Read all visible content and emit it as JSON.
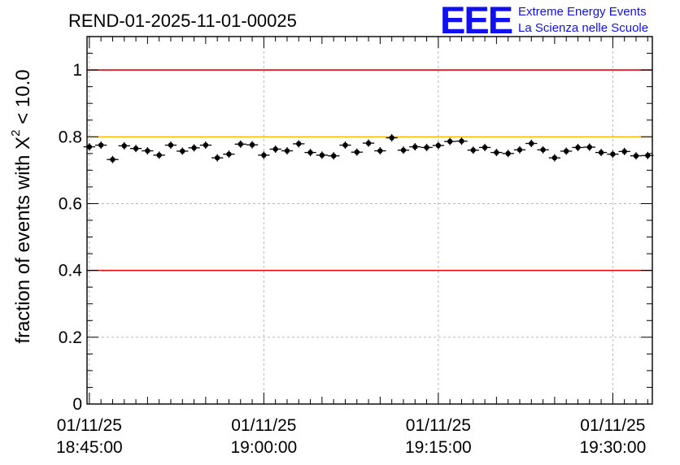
{
  "chart_data": {
    "type": "scatter",
    "title": "REND-01-2025-11-01-00025",
    "xlabel": "",
    "ylabel_prefix": "fraction of events with ",
    "ylabel_symbol": "X",
    "ylabel_exponent": "2",
    "ylabel_suffix": " < 10.0",
    "ylim": [
      0,
      1.1
    ],
    "y_ticks": [
      0,
      0.2,
      0.4,
      0.6,
      0.8,
      1
    ],
    "y_tick_labels": [
      "0",
      "0.2",
      "0.4",
      "0.6",
      "0.8",
      "1"
    ],
    "x_unit": "minutes since 18:45:00",
    "xlim": [
      -0.2,
      48.4
    ],
    "x_ticks": [
      0,
      15,
      30,
      45
    ],
    "x_tick_labels": [
      {
        "date": "01/11/25",
        "time": "18:45:00"
      },
      {
        "date": "01/11/25",
        "time": "19:00:00"
      },
      {
        "date": "01/11/25",
        "time": "19:15:00"
      },
      {
        "date": "01/11/25",
        "time": "19:30:00"
      }
    ],
    "grid": true,
    "reference_lines": [
      {
        "y": 1.0,
        "color": "#e8000b"
      },
      {
        "y": 0.8,
        "color": "#ffbf00"
      },
      {
        "y": 0.4,
        "color": "#e8000b"
      }
    ],
    "x": [
      0.0,
      1.0,
      2.0,
      3.0,
      4.0,
      5.0,
      6.0,
      7.0,
      8.0,
      9.0,
      10.0,
      11.0,
      12.0,
      13.0,
      14.0,
      15.0,
      16.0,
      17.0,
      18.0,
      19.0,
      20.0,
      21.0,
      22.0,
      23.0,
      24.0,
      25.0,
      26.0,
      27.0,
      28.0,
      29.0,
      30.0,
      31.0,
      32.0,
      33.0,
      34.0,
      35.0,
      36.0,
      37.0,
      38.0,
      39.0,
      40.0,
      41.0,
      42.0,
      43.0,
      44.0,
      45.0,
      46.0,
      47.0,
      48.0
    ],
    "values": [
      0.77,
      0.775,
      0.732,
      0.773,
      0.765,
      0.758,
      0.745,
      0.775,
      0.757,
      0.767,
      0.775,
      0.737,
      0.748,
      0.778,
      0.776,
      0.745,
      0.763,
      0.758,
      0.779,
      0.753,
      0.745,
      0.743,
      0.775,
      0.754,
      0.781,
      0.758,
      0.797,
      0.76,
      0.77,
      0.768,
      0.774,
      0.786,
      0.787,
      0.76,
      0.768,
      0.753,
      0.75,
      0.761,
      0.78,
      0.761,
      0.737,
      0.757,
      0.768,
      0.769,
      0.753,
      0.748,
      0.756,
      0.743,
      0.744
    ],
    "y_error": 0.011,
    "x_halfwidth": 0.5
  },
  "logo": {
    "mark": "EEE",
    "line1": "Extreme Energy Events",
    "line2": "La Scienza nelle Scuole",
    "color": "#1111ee"
  }
}
